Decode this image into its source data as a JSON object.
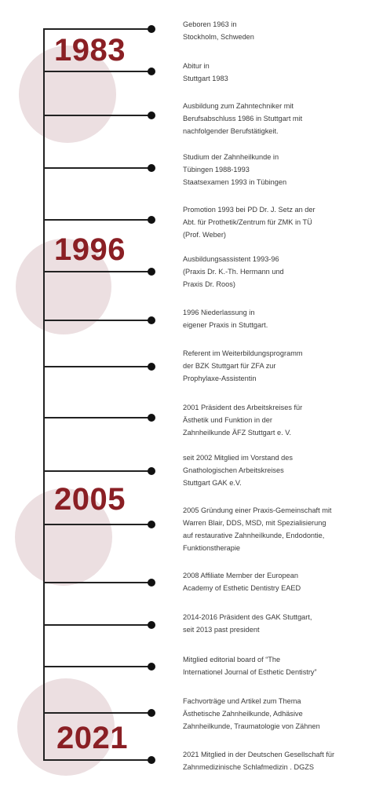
{
  "colors": {
    "year": "#8a1f24",
    "circle": "#ecdfe1",
    "line": "#222222",
    "text": "#3a3a3a"
  },
  "years": [
    "1983",
    "1996",
    "2005",
    "2021"
  ],
  "entries": [
    "Geboren 1963 in\nStockholm, Schweden",
    "Abitur in\nStuttgart 1983",
    "Ausbildung zum Zahntechniker mit\nBerufsabschluss 1986 in Stuttgart mit\nnachfolgender Berufstätigkeit.",
    "Studium der Zahnheilkunde in\nTübingen 1988-1993\nStaatsexamen 1993 in Tübingen",
    "Promotion 1993 bei PD Dr. J. Setz an der\nAbt. für Prothetik/Zentrum für ZMK in TÜ\n(Prof. Weber)",
    "Ausbildungsassistent 1993-96\n(Praxis Dr. K.-Th. Hermann und\nPraxis Dr. Roos)",
    "1996 Niederlassung in\neigener Praxis in Stuttgart.",
    "Referent im Weiterbildungsprogramm\nder BZK Stuttgart für ZFA zur\nProphylaxe-Assistentin",
    "2001 Präsident des Arbeitskreises für\nÄsthetik und Funktion in der\nZahnheilkunde ÄFZ Stuttgart e. V.",
    "seit 2002 Mitglied im Vorstand des\nGnathologischen Arbeitskreises\nStuttgart GAK e.V.",
    "2005 Gründung einer Praxis-Gemeinschaft mit\nWarren Blair, DDS, MSD,  mit Spezialisierung\nauf restaurative Zahnheilkunde, Endodontie,\nFunktionstherapie",
    "2008 Affiliate Member der European\nAcademy of Esthetic Dentistry EAED",
    "2014-2016 Präsident des GAK Stuttgart,\nseit 2013 past president",
    "Mitglied editorial board of “The\nInternationel Journal of Esthetic Dentistry”",
    "Fachvorträge und Artikel zum Thema\nÄsthetische Zahnheilkunde, Adhäsive\nZahnheilkunde, Traumatologie von Zähnen",
    "2021 Mitglied in der Deutschen Gesellschaft für\nZahnmedizinische Schlafmedizin . DGZS"
  ]
}
